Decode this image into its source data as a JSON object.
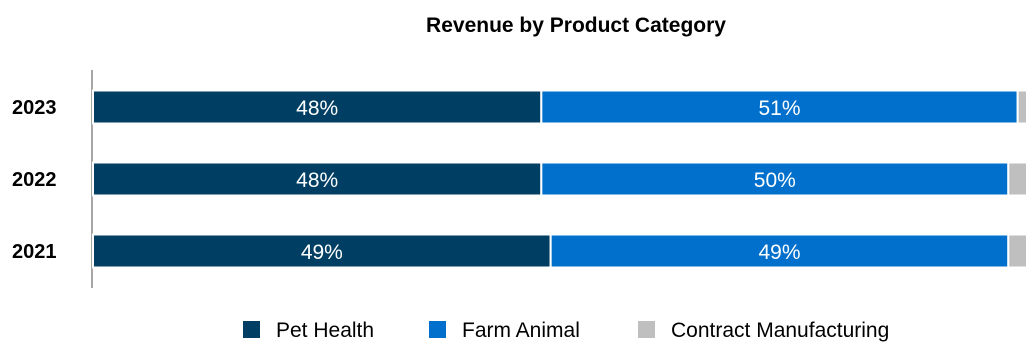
{
  "chart_data": {
    "type": "bar",
    "orientation": "horizontal",
    "stacked": true,
    "title": "Revenue by Product Category",
    "categories": [
      "2023",
      "2022",
      "2021"
    ],
    "series": [
      {
        "name": "Pet Health",
        "values": [
          48,
          48,
          49
        ],
        "labels": [
          "48%",
          "48%",
          "49%"
        ],
        "color": "#003f63"
      },
      {
        "name": "Farm Animal",
        "values": [
          51,
          50,
          49
        ],
        "labels": [
          "51%",
          "50%",
          "49%"
        ],
        "color": "#0070cc"
      },
      {
        "name": "Contract Manufacturing",
        "values": [
          1,
          2,
          2
        ],
        "labels": [
          "",
          "",
          ""
        ],
        "color": "#bfbfbf"
      }
    ],
    "xlim": [
      0,
      100
    ],
    "unit": "%",
    "grid": false,
    "legend_position": "bottom"
  }
}
